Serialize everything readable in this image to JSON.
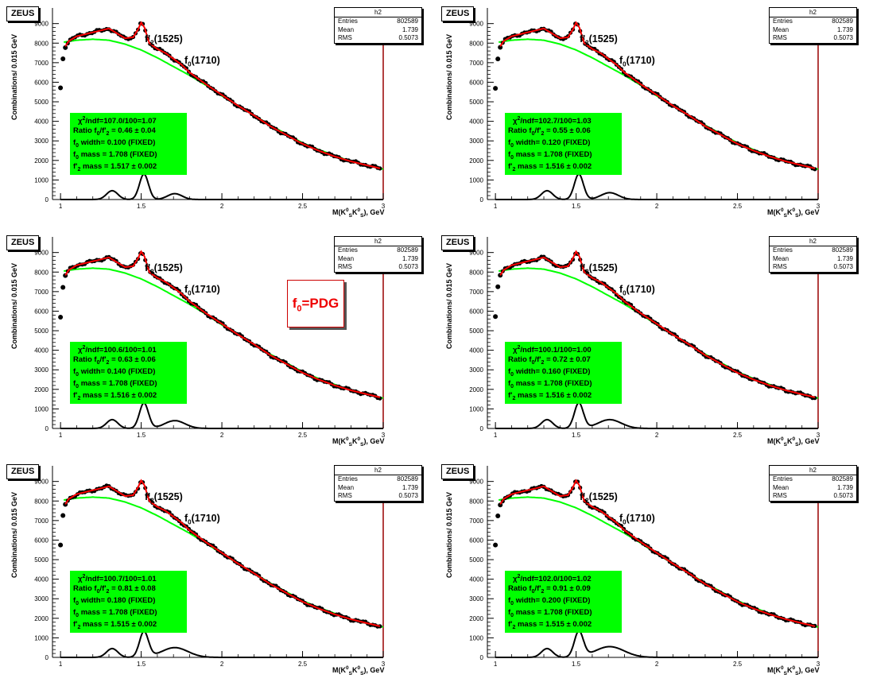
{
  "colors": {
    "data": "#000000",
    "fit": "#ff0000",
    "background_fit": "#00ff00",
    "signal": "#000000",
    "frame_right": "#990000",
    "fit_box": "#00ff00",
    "pdg": "#ee0000"
  },
  "pdg_label": {
    "main": "f",
    "sub": "0",
    "rest": "=PDG"
  },
  "common": {
    "zeus": "ZEUS",
    "ylabel": "Combinations/ 0.015 GeV",
    "xlabel_main": "M(K",
    "xlabel_mid": "K",
    "xlabel_end": "), GeV",
    "xlabel_sup": "0",
    "xlabel_sub": "S",
    "f2_label": "f'",
    "f2_sub": "2",
    "f2_rest": "(1525)",
    "f0_label": "f",
    "f0_sub": "0",
    "f0_rest": "(1710)",
    "stats_title": "h2",
    "stats_entries_label": "Entries",
    "stats_entries": "802589",
    "stats_mean_label": "Mean",
    "stats_mean": "1.739",
    "stats_rms_label": "RMS",
    "stats_rms": "0.5073"
  },
  "panels": [
    {
      "chi2": "/ndf=107.0/100=1.07",
      "ratio": "0.46 ± 0.04",
      "width": "0.100 (FIXED)",
      "f0mass": "1.708 (FIXED)",
      "f2mass": "1.517 ± 0.002"
    },
    {
      "chi2": "/ndf=102.7/100=1.03",
      "ratio": "0.55 ± 0.06",
      "width": "0.120 (FIXED)",
      "f0mass": "1.708 (FIXED)",
      "f2mass": "1.516 ± 0.002"
    },
    {
      "chi2": "/ndf=100.6/100=1.01",
      "ratio": "0.63 ± 0.06",
      "width": "0.140 (FIXED)",
      "f0mass": "1.708 (FIXED)",
      "f2mass": "1.516 ± 0.002"
    },
    {
      "chi2": "/ndf=100.1/100=1.00",
      "ratio": "0.72 ± 0.07",
      "width": "0.160 (FIXED)",
      "f0mass": "1.708 (FIXED)",
      "f2mass": "1.516 ± 0.002"
    },
    {
      "chi2": "/ndf=100.7/100=1.01",
      "ratio": "0.81 ± 0.08",
      "width": "0.180 (FIXED)",
      "f0mass": "1.708 (FIXED)",
      "f2mass": "1.515 ± 0.002"
    },
    {
      "chi2": "/ndf=102.0/100=1.02",
      "ratio": "0.91 ± 0.09",
      "width": "0.200 (FIXED)",
      "f0mass": "1.708 (FIXED)",
      "f2mass": "1.515 ± 0.002"
    }
  ],
  "fit_text": {
    "chi": "χ",
    "chi_sup": "2",
    "ratio_a": "Ratio f",
    "ratio_sub0": "0",
    "ratio_b": "/f'",
    "ratio_sub2": "2",
    "ratio_c": " = ",
    "width_a": "f",
    "width_sub": "0",
    "width_b": " width= ",
    "f0m_a": "f",
    "f0m_sub": "0",
    "f0m_b": " mass = ",
    "f2m_a": "f'",
    "f2m_sub": "2",
    "f2m_b": " mass = "
  },
  "chart_data": {
    "type": "line",
    "xlabel": "M(K0S K0S), GeV",
    "ylabel": "Combinations/ 0.015 GeV",
    "xlim": [
      0.95,
      3.0
    ],
    "ylim": [
      0,
      9800
    ],
    "x_ticks": [
      "1",
      "1.5",
      "2",
      "2.5",
      "3"
    ],
    "y_ticks": [
      "0",
      "1000",
      "2000",
      "3000",
      "4000",
      "5000",
      "6000",
      "7000",
      "8000",
      "9000"
    ],
    "panels_widths": [
      0.1,
      0.12,
      0.14,
      0.16,
      0.18,
      0.2
    ],
    "series": [
      {
        "name": "data",
        "x": [
          1.0,
          1.02,
          1.05,
          1.1,
          1.15,
          1.2,
          1.25,
          1.3,
          1.35,
          1.4,
          1.45,
          1.48,
          1.5,
          1.52,
          1.55,
          1.6,
          1.65,
          1.7,
          1.75,
          1.8,
          1.9,
          2.0,
          2.1,
          2.2,
          2.3,
          2.4,
          2.5,
          2.6,
          2.7,
          2.8,
          2.9,
          3.0
        ],
        "y": [
          5700,
          7700,
          8100,
          8350,
          8450,
          8550,
          8650,
          8750,
          8500,
          8250,
          8300,
          8700,
          9050,
          8800,
          8000,
          7700,
          7500,
          7200,
          6900,
          6500,
          5900,
          5350,
          4800,
          4300,
          3750,
          3300,
          2850,
          2500,
          2200,
          1950,
          1750,
          1550
        ]
      },
      {
        "name": "background",
        "x": [
          1.02,
          1.1,
          1.2,
          1.3,
          1.4,
          1.5,
          1.6,
          1.7,
          1.8,
          1.9,
          2.0,
          2.1,
          2.2,
          2.3,
          2.4,
          2.5,
          2.6,
          2.7,
          2.8,
          2.9,
          3.0
        ],
        "y": [
          8050,
          8150,
          8200,
          8150,
          7950,
          7650,
          7250,
          6800,
          6350,
          5850,
          5300,
          4800,
          4300,
          3800,
          3350,
          2900,
          2550,
          2250,
          1950,
          1750,
          1550
        ]
      },
      {
        "name": "signal",
        "x": [
          1.0,
          1.2,
          1.25,
          1.32,
          1.4,
          1.45,
          1.52,
          1.6,
          1.65,
          1.71,
          1.8,
          1.9,
          2.0,
          3.0
        ],
        "y": [
          0,
          0,
          200,
          450,
          100,
          200,
          1300,
          150,
          250,
          550,
          200,
          30,
          0,
          0
        ]
      }
    ]
  }
}
